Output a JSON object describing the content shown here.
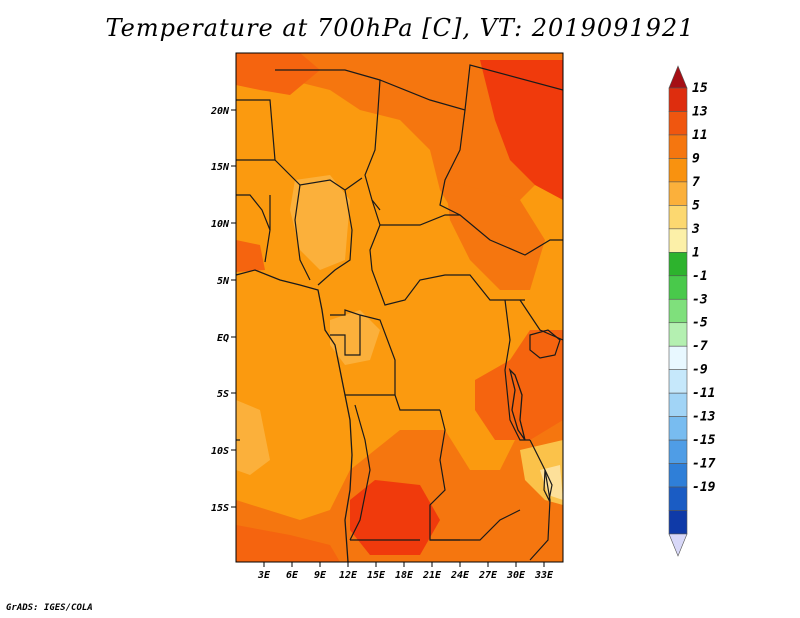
{
  "title": "Temperature at 700hPa [C], VT: 2019091921",
  "credit": "GrADS: IGES/COLA",
  "map": {
    "lat_labels": [
      "20N",
      "15N",
      "10N",
      "5N",
      "EQ",
      "5S",
      "10S",
      "15S"
    ],
    "lon_labels": [
      "3E",
      "6E",
      "9E",
      "12E",
      "15E",
      "18E",
      "21E",
      "24E",
      "27E",
      "30E",
      "33E"
    ]
  },
  "colorbar": {
    "labels": [
      "15",
      "13",
      "11",
      "9",
      "7",
      "5",
      "3",
      "1",
      "-1",
      "-3",
      "-5",
      "-7",
      "-9",
      "-11",
      "-13",
      "-15",
      "-17",
      "-19"
    ],
    "colors": [
      "#a50f15",
      "#de2d0e",
      "#f0560f",
      "#f5760f",
      "#f9920f",
      "#fbb03b",
      "#fcd870",
      "#fcf0a8",
      "#2db32d",
      "#49c94b",
      "#7fe07c",
      "#b4f0b1",
      "#e8f8ff",
      "#c6e8fb",
      "#a1d4f6",
      "#78bcf0",
      "#4f9de6",
      "#2f7fd8",
      "#1a5cc4",
      "#0f3aa8",
      "#061a80"
    ]
  },
  "colors": {
    "warm_dark": "#f03a0c",
    "warm": "#f5640f",
    "mid": "#fb9a0f",
    "light": "#fbc24a",
    "pale": "#fde09a"
  }
}
